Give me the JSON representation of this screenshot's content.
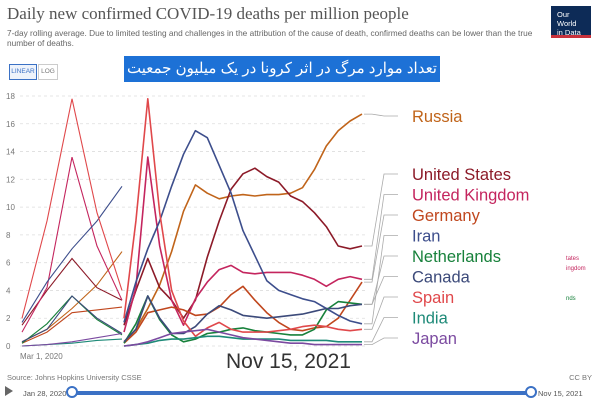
{
  "title": "Daily new confirmed COVID-19 deaths per million people",
  "subtitle": "7-day rolling average. Due to limited testing and challenges in the attribution of the cause of death, confirmed deaths can be lower than the true number of deaths.",
  "logo": {
    "line1": "Our World",
    "line2": "in Data"
  },
  "toggles": {
    "linear": "LINEAR",
    "log": "LOG"
  },
  "banner": "تعداد موارد مرگ در اثر کرونا در یک میلیون جمعیت",
  "date_overlay": "Nov 15, 2021",
  "source": "Source: Johns Hopkins University CSSE",
  "license": "CC BY",
  "timeline": {
    "start": "Jan 28, 2020",
    "end": "Nov 15, 2021"
  },
  "partial_labels": [
    "tates",
    "ingdom",
    "nds"
  ],
  "colors": {
    "accent": "#3b71c5",
    "banner": "#1d71d6"
  },
  "chart_data": {
    "type": "line",
    "x_label_first": "Mar 1, 2020",
    "ylim": [
      0,
      18
    ],
    "yticks": [
      0,
      2,
      4,
      6,
      8,
      10,
      12,
      14,
      16,
      18
    ],
    "grid": true,
    "series": [
      {
        "name": "Russia",
        "color": "#c0641a",
        "values": [
          0.3,
          1.2,
          2.7,
          4.4,
          6.8,
          9.7,
          11.6,
          11,
          10.6,
          10.8,
          10.9,
          10.8,
          10.9,
          10.9,
          11,
          11.4,
          12.7,
          14.4,
          15.5,
          16.2,
          16.7
        ]
      },
      {
        "name": "United States",
        "color": "#8c1a28",
        "values": [
          1.5,
          4,
          6.3,
          4.2,
          3.3,
          2,
          3.3,
          6.4,
          9,
          11.3,
          12.4,
          12.8,
          12.2,
          11.8,
          10.8,
          10.4,
          9.6,
          8.6,
          7.2,
          7,
          7.2
        ]
      },
      {
        "name": "United Kingdom",
        "color": "#c4255e",
        "values": [
          1,
          4.2,
          13.6,
          7.2,
          3.3,
          1.5,
          3.4,
          4.6,
          5.5,
          5.8,
          5.3,
          5.2,
          5.3,
          5.3,
          5.3,
          5.1,
          4.8,
          4.3,
          4.8,
          5,
          4.8
        ]
      },
      {
        "name": "Germany",
        "color": "#c0471e",
        "values": [
          0.2,
          1,
          2.4,
          2.6,
          2.8,
          2.6,
          2.2,
          2.3,
          2.8,
          3.7,
          4.3,
          3.3,
          2.4,
          1.7,
          1.2,
          1.1,
          1.3,
          1.4,
          2,
          3.3,
          4.6
        ]
      },
      {
        "name": "Iran",
        "color": "#3d4e8c",
        "values": [
          1.7,
          4.6,
          7,
          9,
          11.5,
          13.8,
          15.5,
          15,
          13,
          11,
          8.3,
          6.5,
          4.7,
          4,
          3.7,
          3.4,
          3.2,
          2.7,
          2.2,
          1.8,
          1.6
        ]
      },
      {
        "name": "Netherlands",
        "color": "#17813b",
        "values": [
          0.2,
          1.6,
          3.6,
          1.9,
          0.8,
          0.3,
          0.5,
          0.9,
          1,
          1.2,
          1.3,
          1.1,
          1,
          0.9,
          0.8,
          0.8,
          1.2,
          2.6,
          3.2,
          3.1,
          3
        ]
      },
      {
        "name": "Canada",
        "color": "#3c4a7a",
        "values": [
          0.3,
          1.2,
          3.6,
          2,
          0.9,
          0.9,
          1.4,
          2.3,
          2.9,
          2.6,
          2.2,
          2.1,
          2,
          2.1,
          2.2,
          2.3,
          2.5,
          2.7,
          2.7,
          2.9,
          3
        ]
      },
      {
        "name": "Spain",
        "color": "#e0484b",
        "values": [
          2,
          9,
          17.8,
          9.6,
          4,
          1.8,
          0.7,
          1.3,
          1.7,
          1.2,
          1,
          1,
          1,
          1.1,
          1.2,
          1.4,
          1.5,
          1.4,
          1.2,
          1.1,
          1.2
        ]
      },
      {
        "name": "India",
        "color": "#1e8a78",
        "values": [
          0,
          0.1,
          0.2,
          0.4,
          0.5,
          0.5,
          0.6,
          0.7,
          0.7,
          0.6,
          0.5,
          0.5,
          0.5,
          0.5,
          0.4,
          0.4,
          0.4,
          0.4,
          0.3,
          0.3,
          0.3
        ]
      },
      {
        "name": "Japan",
        "color": "#7b4aa0",
        "values": [
          0,
          0.1,
          0.3,
          0.6,
          0.9,
          1,
          1.1,
          1.2,
          1,
          0.8,
          0.6,
          0.5,
          0.4,
          0.3,
          0.2,
          0.2,
          0.1,
          0.1,
          0.1,
          0.1,
          0.1
        ]
      }
    ]
  }
}
